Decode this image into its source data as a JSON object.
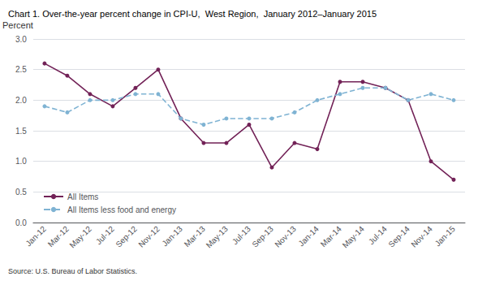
{
  "chart_data": {
    "type": "line",
    "title": "Chart 1. Over-the-year percent change in CPI-U,  West Region,  January 2012–January 2015",
    "ylabel": "Percent",
    "source": "Source: U.S. Bureau of Labor Statistics.",
    "categories": [
      "Jan-12",
      "Mar-12",
      "May-12",
      "Jul-12",
      "Sep-12",
      "Nov-12",
      "Jan-13",
      "Mar-13",
      "May-13",
      "Jul-13",
      "Sep-13",
      "Nov-13",
      "Jan-14",
      "Mar-14",
      "May-14",
      "Jul-14",
      "Sep-14",
      "Nov-14",
      "Jan-15"
    ],
    "series": [
      {
        "name": "All Items",
        "color": "#722257",
        "marker": "circle",
        "line_style": "solid",
        "values": [
          2.6,
          2.4,
          2.1,
          1.9,
          2.2,
          2.5,
          1.7,
          1.3,
          1.3,
          1.6,
          0.9,
          1.3,
          1.2,
          2.3,
          2.3,
          2.2,
          2.0,
          1.0,
          0.7
        ]
      },
      {
        "name": "All Items less food and energy",
        "color": "#7fb3d3",
        "marker": "circle",
        "line_style": "dashed",
        "values": [
          1.9,
          1.8,
          2.0,
          2.0,
          2.1,
          2.1,
          1.7,
          1.6,
          1.7,
          1.7,
          1.7,
          1.8,
          2.0,
          2.1,
          2.2,
          2.2,
          2.0,
          2.1,
          2.0
        ]
      }
    ],
    "ylim": [
      0.0,
      3.0
    ],
    "yticks": [
      {
        "value": 0,
        "label": "0.0"
      },
      0.5,
      {
        "value": 1,
        "label": "1.0"
      },
      1.5,
      {
        "value": 2,
        "label": "2.0"
      },
      2.5,
      {
        "value": 3,
        "label": "3.0"
      }
    ],
    "grid": true,
    "legend": "lower left"
  }
}
